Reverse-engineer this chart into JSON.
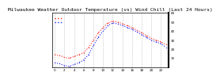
{
  "title": "Milwaukee Weather Outdoor Temperature (vs) Wind Chill (Last 24 Hours)",
  "hours": [
    0,
    1,
    2,
    3,
    4,
    5,
    6,
    7,
    8,
    9,
    10,
    11,
    12,
    13,
    14,
    15,
    16,
    17,
    18,
    19,
    20,
    21,
    22,
    23
  ],
  "temp": [
    14,
    13,
    11,
    10,
    12,
    14,
    16,
    22,
    30,
    38,
    44,
    49,
    51,
    50,
    48,
    46,
    44,
    41,
    38,
    35,
    32,
    30,
    28,
    25
  ],
  "windchill": [
    5,
    4,
    2,
    1,
    3,
    5,
    8,
    14,
    24,
    33,
    40,
    46,
    49,
    48,
    46,
    44,
    42,
    39,
    36,
    33,
    30,
    28,
    26,
    22
  ],
  "temp_color": "#ff2020",
  "windchill_color": "#2020ff",
  "ylim": [
    0,
    60
  ],
  "yticks": [
    10,
    20,
    30,
    40,
    50,
    60
  ],
  "background_color": "#ffffff",
  "grid_color": "#aaaaaa",
  "title_fontsize": 4.5,
  "tick_fontsize": 3.0
}
